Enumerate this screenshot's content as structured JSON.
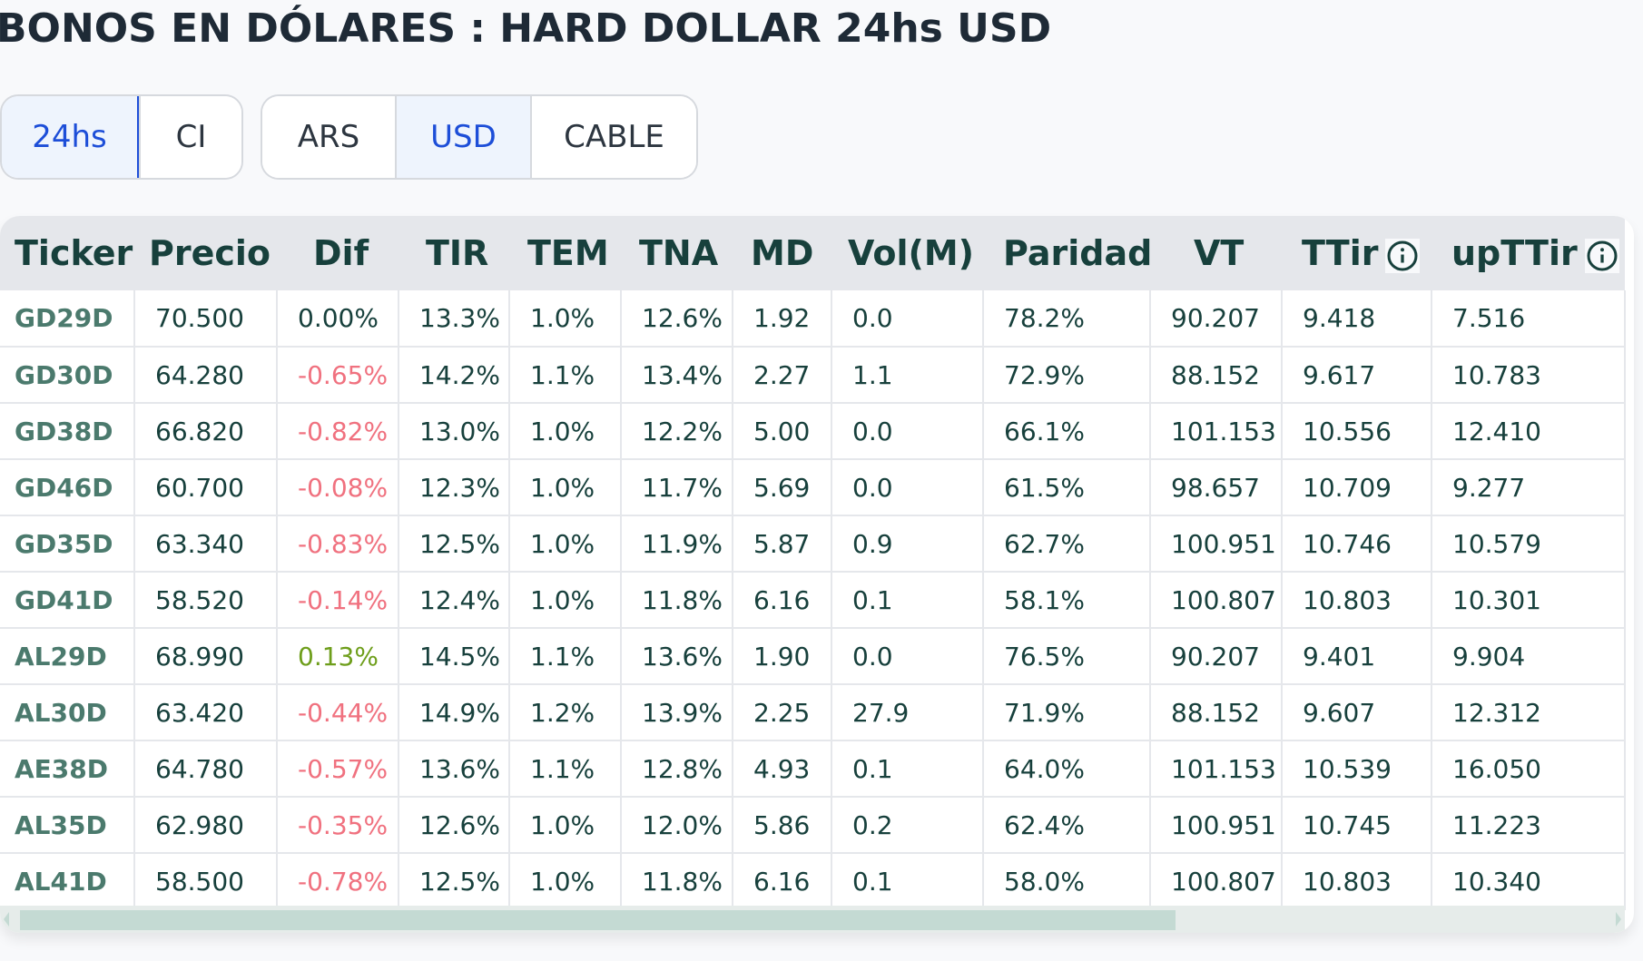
{
  "header": {
    "title": "BONOS EN DÓLARES : HARD DOLLAR 24hs USD"
  },
  "settlement_toggle": {
    "options": [
      {
        "label": "24hs",
        "active": true
      },
      {
        "label": "CI",
        "active": false
      }
    ]
  },
  "currency_toggle": {
    "options": [
      {
        "label": "ARS",
        "active": false
      },
      {
        "label": "USD",
        "active": true
      },
      {
        "label": "CABLE",
        "active": false
      }
    ]
  },
  "colors": {
    "accent": "#1d4ed8",
    "negative": "#f0717f",
    "positive": "#6e9e1b",
    "ticker": "#4b7a6d",
    "header_bg": "#e5e7eb",
    "text": "#17403c"
  },
  "table": {
    "columns": [
      {
        "label": "Ticker",
        "info": false
      },
      {
        "label": "Precio",
        "info": false
      },
      {
        "label": "Dif",
        "info": false
      },
      {
        "label": "TIR",
        "info": false
      },
      {
        "label": "TEM",
        "info": false
      },
      {
        "label": "TNA",
        "info": false
      },
      {
        "label": "MD",
        "info": false
      },
      {
        "label": "Vol(M)",
        "info": false
      },
      {
        "label": "Paridad",
        "info": false
      },
      {
        "label": "VT",
        "info": false
      },
      {
        "label": "TTir",
        "info": true,
        "icon": "info-circle-icon"
      },
      {
        "label": "upTTir",
        "info": true,
        "icon": "info-circle-icon"
      }
    ],
    "rows": [
      {
        "ticker": "GD29D",
        "precio": "70.500",
        "dif": "0.00%",
        "dif_dir": "neu",
        "tir": "13.3%",
        "tem": "1.0%",
        "tna": "12.6%",
        "md": "1.92",
        "vol": "0.0",
        "paridad": "78.2%",
        "vt": "90.207",
        "ttir": "9.418",
        "upttir": "7.516"
      },
      {
        "ticker": "GD30D",
        "precio": "64.280",
        "dif": "-0.65%",
        "dif_dir": "neg",
        "tir": "14.2%",
        "tem": "1.1%",
        "tna": "13.4%",
        "md": "2.27",
        "vol": "1.1",
        "paridad": "72.9%",
        "vt": "88.152",
        "ttir": "9.617",
        "upttir": "10.783"
      },
      {
        "ticker": "GD38D",
        "precio": "66.820",
        "dif": "-0.82%",
        "dif_dir": "neg",
        "tir": "13.0%",
        "tem": "1.0%",
        "tna": "12.2%",
        "md": "5.00",
        "vol": "0.0",
        "paridad": "66.1%",
        "vt": "101.153",
        "ttir": "10.556",
        "upttir": "12.410"
      },
      {
        "ticker": "GD46D",
        "precio": "60.700",
        "dif": "-0.08%",
        "dif_dir": "neg",
        "tir": "12.3%",
        "tem": "1.0%",
        "tna": "11.7%",
        "md": "5.69",
        "vol": "0.0",
        "paridad": "61.5%",
        "vt": "98.657",
        "ttir": "10.709",
        "upttir": "9.277"
      },
      {
        "ticker": "GD35D",
        "precio": "63.340",
        "dif": "-0.83%",
        "dif_dir": "neg",
        "tir": "12.5%",
        "tem": "1.0%",
        "tna": "11.9%",
        "md": "5.87",
        "vol": "0.9",
        "paridad": "62.7%",
        "vt": "100.951",
        "ttir": "10.746",
        "upttir": "10.579"
      },
      {
        "ticker": "GD41D",
        "precio": "58.520",
        "dif": "-0.14%",
        "dif_dir": "neg",
        "tir": "12.4%",
        "tem": "1.0%",
        "tna": "11.8%",
        "md": "6.16",
        "vol": "0.1",
        "paridad": "58.1%",
        "vt": "100.807",
        "ttir": "10.803",
        "upttir": "10.301"
      },
      {
        "ticker": "AL29D",
        "precio": "68.990",
        "dif": "0.13%",
        "dif_dir": "pos",
        "tir": "14.5%",
        "tem": "1.1%",
        "tna": "13.6%",
        "md": "1.90",
        "vol": "0.0",
        "paridad": "76.5%",
        "vt": "90.207",
        "ttir": "9.401",
        "upttir": "9.904"
      },
      {
        "ticker": "AL30D",
        "precio": "63.420",
        "dif": "-0.44%",
        "dif_dir": "neg",
        "tir": "14.9%",
        "tem": "1.2%",
        "tna": "13.9%",
        "md": "2.25",
        "vol": "27.9",
        "paridad": "71.9%",
        "vt": "88.152",
        "ttir": "9.607",
        "upttir": "12.312"
      },
      {
        "ticker": "AE38D",
        "precio": "64.780",
        "dif": "-0.57%",
        "dif_dir": "neg",
        "tir": "13.6%",
        "tem": "1.1%",
        "tna": "12.8%",
        "md": "4.93",
        "vol": "0.1",
        "paridad": "64.0%",
        "vt": "101.153",
        "ttir": "10.539",
        "upttir": "16.050"
      },
      {
        "ticker": "AL35D",
        "precio": "62.980",
        "dif": "-0.35%",
        "dif_dir": "neg",
        "tir": "12.6%",
        "tem": "1.0%",
        "tna": "12.0%",
        "md": "5.86",
        "vol": "0.2",
        "paridad": "62.4%",
        "vt": "100.951",
        "ttir": "10.745",
        "upttir": "11.223"
      },
      {
        "ticker": "AL41D",
        "precio": "58.500",
        "dif": "-0.78%",
        "dif_dir": "neg",
        "tir": "12.5%",
        "tem": "1.0%",
        "tna": "11.8%",
        "md": "6.16",
        "vol": "0.1",
        "paridad": "58.0%",
        "vt": "100.807",
        "ttir": "10.803",
        "upttir": "10.340"
      }
    ]
  }
}
